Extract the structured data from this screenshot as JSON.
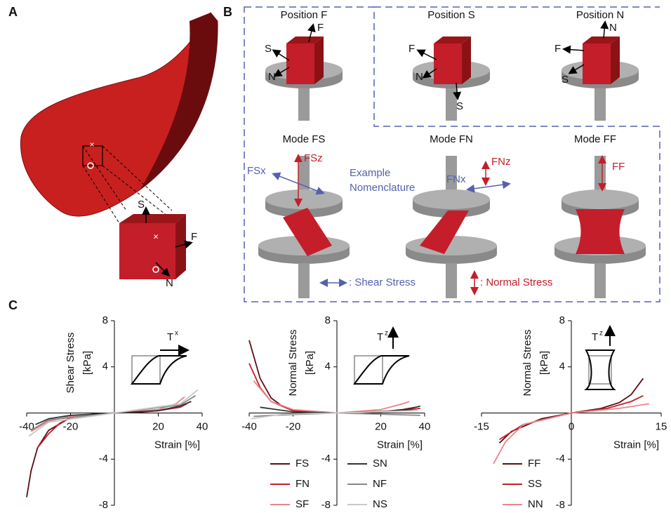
{
  "panel_labels": [
    "A",
    "B",
    "C"
  ],
  "panel_a": {
    "labels": [
      "S",
      "F",
      "N"
    ]
  },
  "panel_b": {
    "positions": [
      {
        "title": "Position F",
        "labels": [
          "F",
          "S",
          "N"
        ]
      },
      {
        "title": "Position S",
        "labels": [
          "F",
          "N",
          "S"
        ]
      },
      {
        "title": "Position N",
        "labels": [
          "N",
          "F",
          "S"
        ]
      }
    ],
    "modes": [
      {
        "title": "Mode FS",
        "labels": [
          "FSz",
          "FSx"
        ]
      },
      {
        "title": "Mode FN",
        "labels": [
          "FNz",
          "FNx"
        ]
      },
      {
        "title": "Mode FF",
        "labels": [
          "FF"
        ]
      }
    ],
    "example": [
      "Example",
      "Nomenclature"
    ],
    "legend": [
      ": Shear Stress",
      ": Normal Stress"
    ]
  },
  "chart_data": [
    {
      "type": "line",
      "ylabel": [
        "Shear Stress",
        "[kPa]"
      ],
      "xlabel": "Strain  [%]",
      "xlim": [
        -40,
        40
      ],
      "ylim": [
        -8,
        8
      ],
      "xticks": [
        -40,
        -20,
        20,
        40
      ],
      "yticks": [
        -8,
        -4,
        4,
        8
      ],
      "legend": false,
      "annotation": {
        "base": "T",
        "sup": "x"
      },
      "series": [
        {
          "name": "FS",
          "color": "#5a0e12",
          "x": [
            -40,
            -38,
            -35,
            -30,
            -20,
            -10,
            0,
            10,
            20,
            30,
            35
          ],
          "values": [
            -7.3,
            -5,
            -3,
            -1.5,
            -0.4,
            -0.1,
            0,
            0.05,
            0.2,
            0.6,
            1
          ]
        },
        {
          "name": "FN",
          "color": "#c41e2a",
          "x": [
            -35,
            -30,
            -25,
            -20,
            -10,
            0,
            20,
            30,
            33
          ],
          "values": [
            -3,
            -1.8,
            -0.9,
            -0.4,
            -0.1,
            0,
            0.2,
            0.5,
            0.8
          ]
        },
        {
          "name": "SF",
          "color": "#e8858a",
          "x": [
            -38,
            -30,
            -20,
            0,
            20,
            28,
            32
          ],
          "values": [
            -1.6,
            -0.7,
            -0.3,
            0,
            0.3,
            0.8,
            1.4
          ]
        },
        {
          "name": "SN",
          "color": "#333333",
          "x": [
            -36,
            -30,
            -20,
            0,
            20,
            30,
            35
          ],
          "values": [
            -1,
            -0.5,
            -0.2,
            0,
            0.2,
            0.6,
            1
          ]
        },
        {
          "name": "NF",
          "color": "#888888",
          "x": [
            -38,
            -30,
            0,
            30,
            37
          ],
          "values": [
            -1.5,
            -0.6,
            0,
            0.7,
            1.5
          ]
        },
        {
          "name": "NS",
          "color": "#c8c8c8",
          "x": [
            -39,
            -30,
            0,
            30,
            38
          ],
          "values": [
            -2,
            -0.8,
            0,
            0.8,
            2
          ]
        }
      ]
    },
    {
      "type": "line",
      "ylabel": [
        "Normal Stress",
        "[kPa]"
      ],
      "xlabel": "Strain [%]",
      "xlim": [
        -40,
        40
      ],
      "ylim": [
        -8,
        8
      ],
      "xticks": [
        -40,
        -20,
        20,
        40
      ],
      "yticks": [
        -8,
        -4,
        4,
        8
      ],
      "legend": true,
      "annotation": {
        "base": "T",
        "sup": "z"
      },
      "series": [
        {
          "name": "FS",
          "color": "#5a0e12",
          "x": [
            -40,
            -35,
            -30,
            -25,
            -20,
            -10,
            0,
            20,
            30,
            36
          ],
          "values": [
            6.3,
            3,
            1.3,
            0.6,
            0.2,
            0,
            0,
            0.1,
            0.3,
            0.5
          ]
        },
        {
          "name": "FN",
          "color": "#c41e2a",
          "x": [
            -40,
            -35,
            -30,
            -20,
            0,
            30,
            38
          ],
          "values": [
            4.3,
            2.2,
            1,
            0.2,
            0,
            0.2,
            0.4
          ]
        },
        {
          "name": "SF",
          "color": "#e8858a",
          "x": [
            -38,
            -30,
            -20,
            0,
            20,
            30,
            33
          ],
          "values": [
            2.8,
            1,
            0.3,
            0,
            0.3,
            0.8,
            1
          ]
        },
        {
          "name": "SN",
          "color": "#333333",
          "x": [
            -35,
            -20,
            0,
            30,
            38
          ],
          "values": [
            0.5,
            0.1,
            0,
            0.2,
            0.6
          ]
        },
        {
          "name": "NF",
          "color": "#888888",
          "x": [
            -38,
            -30,
            0,
            38
          ],
          "values": [
            -0.3,
            -0.2,
            0,
            -0.2
          ]
        },
        {
          "name": "NS",
          "color": "#c8c8c8",
          "x": [
            -39,
            -25,
            0,
            37
          ],
          "values": [
            -0.5,
            -0.1,
            0,
            0.2
          ]
        }
      ]
    },
    {
      "type": "line",
      "ylabel": [
        "Normal Stress",
        "[kPa]"
      ],
      "xlabel": "Strain [%]",
      "xlim": [
        -15,
        15
      ],
      "ylim": [
        -8,
        8
      ],
      "xticks": [
        -15,
        0,
        15
      ],
      "yticks": [
        -8,
        -4,
        4,
        8
      ],
      "legend": true,
      "annotation": {
        "base": "T",
        "sup": "z"
      },
      "series": [
        {
          "name": "FF",
          "color": "#5a0e12",
          "x": [
            -12,
            -10,
            -5,
            0,
            5,
            8,
            10,
            12
          ],
          "values": [
            -2.6,
            -1.6,
            -0.5,
            0,
            0.4,
            0.9,
            1.6,
            3
          ]
        },
        {
          "name": "SS",
          "color": "#c41e2a",
          "x": [
            -12,
            -8,
            0,
            6,
            10,
            12
          ],
          "values": [
            -2.3,
            -1,
            0,
            0.4,
            1,
            1.5
          ]
        },
        {
          "name": "NN",
          "color": "#e8858a",
          "x": [
            -13,
            -11,
            -8,
            0,
            8,
            13
          ],
          "values": [
            -4.4,
            -2.5,
            -1,
            0,
            0.4,
            0.8
          ]
        }
      ]
    }
  ]
}
